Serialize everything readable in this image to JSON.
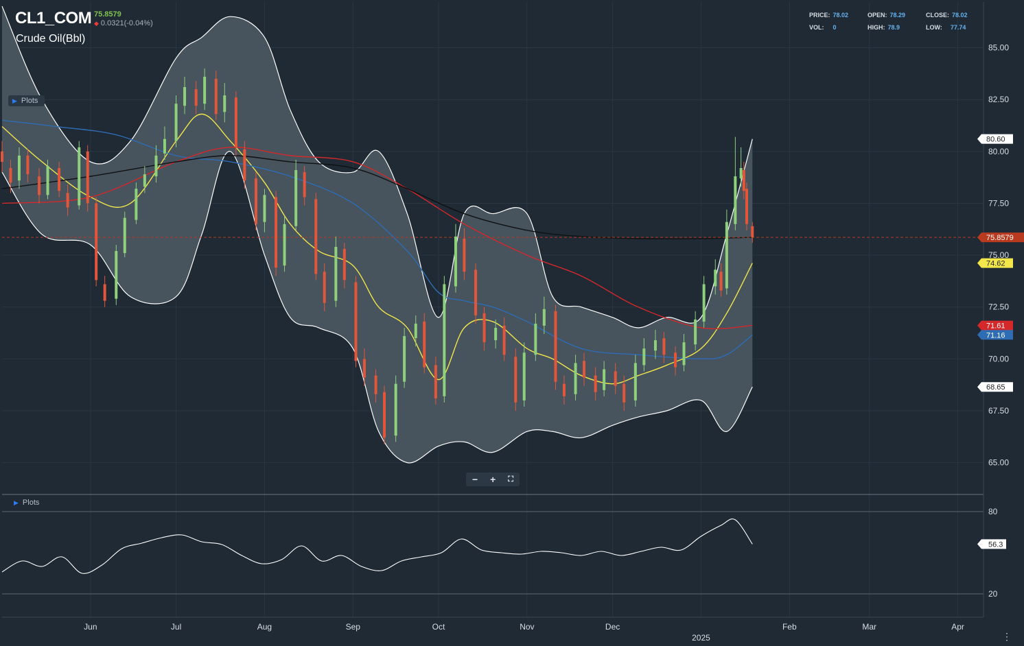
{
  "header": {
    "symbol": "CL1_COM",
    "last_price": "75.8579",
    "change": "0.0321(-0.04%)",
    "instrument": "Crude Oil(Bbl)"
  },
  "ohlc": {
    "price_label": "PRICE:",
    "price": "78.02",
    "open_label": "OPEN:",
    "open": "78.29",
    "close_label": "CLOSE:",
    "close": "78.02",
    "vol_label": "VOL:",
    "vol": "0",
    "high_label": "HIGH:",
    "high": "78.9",
    "low_label": "LOW:",
    "low": "77.74"
  },
  "plots_label": "Plots",
  "zoom": {
    "minus": "−",
    "plus": "+",
    "fit": "⛶"
  },
  "colors": {
    "background": "#1f2a35",
    "band_fill": "#4a5560",
    "up_candle": "#8fd07c",
    "down_candle": "#e2573b",
    "sma_fast": "#f2e64a",
    "sma_mid": "#2e6db4",
    "sma_slow_red": "#d4282a",
    "sma_long": "#111111",
    "current_price": "#b83a1f"
  },
  "chart_data": [
    {
      "type": "line",
      "title": "CL1_COM",
      "ylabel": "",
      "ylim": [
        63.5,
        87.2
      ],
      "y_ticks": [
        "65.00",
        "67.50",
        "70.00",
        "72.50",
        "75.00",
        "77.50",
        "80.00",
        "82.50",
        "85.00"
      ],
      "x_ticks": [
        "Jun",
        "Jul",
        "Aug",
        "Sep",
        "Oct",
        "Nov",
        "Dec",
        "2025",
        "Feb",
        "Mar",
        "Apr"
      ],
      "x_range": [
        "2024-05-01",
        "2025-04-10"
      ],
      "last_value": 75.8579,
      "series": [
        {
          "kind": "band_upper",
          "x": [
            "2024-05-01",
            "2024-05-15",
            "2024-06-01",
            "2024-06-15",
            "2024-07-01",
            "2024-07-10",
            "2024-07-20",
            "2024-08-01",
            "2024-08-10",
            "2024-08-20",
            "2024-09-01",
            "2024-09-10",
            "2024-09-20",
            "2024-10-01",
            "2024-10-10",
            "2024-10-20",
            "2024-11-01",
            "2024-11-10",
            "2024-11-20",
            "2024-12-01",
            "2024-12-10",
            "2024-12-20",
            "2025-01-01",
            "2025-01-10",
            "2025-01-19"
          ],
          "y": [
            87,
            82.5,
            79.5,
            80.5,
            84.5,
            85.5,
            86.5,
            85.5,
            82,
            79.5,
            79,
            80,
            77,
            72,
            77,
            77,
            77,
            73,
            72.5,
            72,
            71.5,
            72,
            72,
            76,
            80.6
          ]
        },
        {
          "kind": "band_lower",
          "x": [
            "2024-05-01",
            "2024-05-15",
            "2024-06-01",
            "2024-06-15",
            "2024-07-01",
            "2024-07-10",
            "2024-07-20",
            "2024-08-01",
            "2024-08-10",
            "2024-08-20",
            "2024-09-01",
            "2024-09-10",
            "2024-09-20",
            "2024-10-01",
            "2024-10-10",
            "2024-10-20",
            "2024-11-01",
            "2024-11-10",
            "2024-11-20",
            "2024-12-01",
            "2024-12-10",
            "2024-12-20",
            "2025-01-01",
            "2025-01-10",
            "2025-01-19"
          ],
          "y": [
            79,
            76,
            75.5,
            73,
            73,
            76,
            80,
            75,
            72,
            71.5,
            70.5,
            66.5,
            65,
            65.8,
            66,
            65.5,
            66.5,
            66.5,
            66.2,
            66.8,
            67.2,
            67.5,
            68,
            66.5,
            68.65
          ]
        },
        {
          "name": "",
          "kind": "sma_fast",
          "x": [
            "2024-05-01",
            "2024-05-15",
            "2024-06-01",
            "2024-06-15",
            "2024-07-01",
            "2024-07-10",
            "2024-07-20",
            "2024-08-01",
            "2024-08-10",
            "2024-08-20",
            "2024-09-01",
            "2024-09-10",
            "2024-09-20",
            "2024-10-01",
            "2024-10-10",
            "2024-10-20",
            "2024-11-01",
            "2024-11-10",
            "2024-11-20",
            "2024-12-01",
            "2024-12-10",
            "2024-12-20",
            "2025-01-01",
            "2025-01-10",
            "2025-01-19"
          ],
          "y": [
            81.2,
            79.5,
            77.8,
            77.5,
            80.5,
            81.8,
            80.5,
            78.5,
            76.5,
            75.2,
            74.5,
            72.5,
            71.5,
            69,
            71.5,
            71.8,
            70.5,
            70,
            69.2,
            68.8,
            69.2,
            69.7,
            70.5,
            72.2,
            74.62
          ]
        },
        {
          "name": "",
          "kind": "sma_mid",
          "x": [
            "2024-05-01",
            "2024-05-20",
            "2024-06-10",
            "2024-07-01",
            "2024-07-20",
            "2024-08-10",
            "2024-09-01",
            "2024-09-20",
            "2024-10-01",
            "2024-10-10",
            "2024-10-20",
            "2024-11-01",
            "2024-11-20",
            "2024-12-10",
            "2025-01-01",
            "2025-01-10",
            "2025-01-19"
          ],
          "y": [
            81.5,
            81.2,
            80.8,
            79.8,
            79.5,
            78.8,
            77.5,
            75.2,
            73.2,
            72.8,
            72.5,
            71.8,
            70.5,
            70.2,
            70,
            70.2,
            71.16
          ]
        },
        {
          "name": "",
          "kind": "sma_slow",
          "x": [
            "2024-05-01",
            "2024-06-01",
            "2024-07-01",
            "2024-07-20",
            "2024-08-10",
            "2024-09-01",
            "2024-09-20",
            "2024-10-10",
            "2024-11-01",
            "2024-11-20",
            "2024-12-10",
            "2025-01-01",
            "2025-01-19"
          ],
          "y": [
            77.5,
            77.8,
            79.5,
            80.2,
            79.8,
            79.5,
            78.2,
            76.5,
            75,
            74,
            72.5,
            71.5,
            71.61
          ]
        },
        {
          "name": "",
          "kind": "sma_long",
          "x": [
            "2024-05-01",
            "2024-06-01",
            "2024-07-01",
            "2024-07-20",
            "2024-08-10",
            "2024-09-01",
            "2024-09-20",
            "2024-10-10",
            "2024-11-01",
            "2024-11-20",
            "2024-12-10",
            "2025-01-01",
            "2025-01-19"
          ],
          "y": [
            78.2,
            78.8,
            79.5,
            79.8,
            79.5,
            79.2,
            78.2,
            77,
            76.2,
            75.9,
            75.8,
            75.8,
            75.86
          ]
        }
      ],
      "candles": [
        [
          "2024-05-01",
          80,
          79.5,
          80.5,
          79
        ],
        [
          "2024-05-04",
          79.2,
          78.5,
          79.6,
          78
        ],
        [
          "2024-05-07",
          78.6,
          79.8,
          80.2,
          78.2
        ],
        [
          "2024-05-10",
          79.8,
          78.9,
          80.1,
          78.5
        ],
        [
          "2024-05-14",
          78.8,
          77.9,
          79.2,
          77.5
        ],
        [
          "2024-05-17",
          77.9,
          79.3,
          79.6,
          77.7
        ],
        [
          "2024-05-21",
          79.2,
          78.1,
          79.5,
          77.8
        ],
        [
          "2024-05-24",
          78,
          77.3,
          78.4,
          76.9
        ],
        [
          "2024-05-28",
          77.4,
          80.2,
          80.5,
          77.2
        ],
        [
          "2024-05-31",
          80,
          77.5,
          80.3,
          77.1
        ],
        [
          "2024-06-03",
          77.5,
          73.8,
          77.8,
          73.5
        ],
        [
          "2024-06-06",
          73.6,
          72.8,
          74,
          72.5
        ],
        [
          "2024-06-10",
          72.9,
          75.2,
          75.5,
          72.6
        ],
        [
          "2024-06-13",
          75.1,
          76.8,
          77.1,
          74.9
        ],
        [
          "2024-06-17",
          76.7,
          78.2,
          78.5,
          76.5
        ],
        [
          "2024-06-20",
          78.3,
          78.9,
          79.3,
          78
        ],
        [
          "2024-06-24",
          78.8,
          79.8,
          80.3,
          78.5
        ],
        [
          "2024-06-27",
          79.9,
          80.6,
          81.2,
          79.6
        ],
        [
          "2024-07-01",
          80.5,
          82.3,
          82.7,
          80.2
        ],
        [
          "2024-07-04",
          82.2,
          83.1,
          83.6,
          81.8
        ],
        [
          "2024-07-08",
          83,
          82.2,
          83.4,
          81.8
        ],
        [
          "2024-07-11",
          82.3,
          83.6,
          84,
          82
        ],
        [
          "2024-07-15",
          83.5,
          81.8,
          83.9,
          81.5
        ],
        [
          "2024-07-18",
          81.9,
          82.7,
          83.3,
          81.4
        ],
        [
          "2024-07-22",
          82.6,
          80.2,
          82.9,
          79.8
        ],
        [
          "2024-07-25",
          80.1,
          78.6,
          80.5,
          78.2
        ],
        [
          "2024-07-29",
          78.7,
          76.5,
          79,
          76.2
        ],
        [
          "2024-08-01",
          76.6,
          77.9,
          78.2,
          76.1
        ],
        [
          "2024-08-05",
          77.8,
          74.4,
          78.1,
          74
        ],
        [
          "2024-08-08",
          74.5,
          76.5,
          76.9,
          74.2
        ],
        [
          "2024-08-12",
          76.4,
          79.1,
          79.6,
          76.2
        ],
        [
          "2024-08-15",
          79,
          77.8,
          79.3,
          77.4
        ],
        [
          "2024-08-19",
          77.7,
          74.1,
          78,
          73.8
        ],
        [
          "2024-08-22",
          74.2,
          72.7,
          74.6,
          72.3
        ],
        [
          "2024-08-26",
          72.8,
          75.4,
          75.9,
          72.5
        ],
        [
          "2024-08-29",
          75.3,
          73.8,
          75.6,
          73.4
        ],
        [
          "2024-09-02",
          73.7,
          69.9,
          74,
          69.6
        ],
        [
          "2024-09-05",
          70,
          69.1,
          70.5,
          68.7
        ],
        [
          "2024-09-09",
          69.2,
          68.3,
          69.5,
          67.9
        ],
        [
          "2024-09-12",
          68.4,
          66.2,
          68.7,
          65.9
        ],
        [
          "2024-09-16",
          66.3,
          68.8,
          69.2,
          66
        ],
        [
          "2024-09-19",
          68.9,
          71.1,
          71.5,
          68.6
        ],
        [
          "2024-09-23",
          71,
          71.7,
          72.1,
          70.6
        ],
        [
          "2024-09-26",
          71.8,
          69.6,
          72.2,
          69.3
        ],
        [
          "2024-09-30",
          69.7,
          68.1,
          70.1,
          67.8
        ],
        [
          "2024-10-03",
          68.2,
          73.6,
          74,
          67.9
        ],
        [
          "2024-10-07",
          73.5,
          75.9,
          76.5,
          73.2
        ],
        [
          "2024-10-10",
          75.8,
          74.2,
          76.3,
          73.8
        ],
        [
          "2024-10-14",
          74.3,
          72.1,
          74.6,
          71.7
        ],
        [
          "2024-10-17",
          72.2,
          70.8,
          72.5,
          70.4
        ],
        [
          "2024-10-21",
          70.9,
          71.5,
          71.9,
          70.5
        ],
        [
          "2024-10-24",
          71.6,
          70.2,
          72,
          69.9
        ],
        [
          "2024-10-28",
          70.1,
          67.9,
          70.5,
          67.5
        ],
        [
          "2024-10-31",
          68,
          70.3,
          70.8,
          67.7
        ],
        [
          "2024-11-04",
          70.2,
          71.7,
          72.2,
          69.9
        ],
        [
          "2024-11-07",
          71.6,
          72.4,
          73,
          71.2
        ],
        [
          "2024-11-11",
          72.3,
          68.9,
          72.6,
          68.5
        ],
        [
          "2024-11-14",
          68.8,
          68.2,
          69.2,
          67.8
        ],
        [
          "2024-11-18",
          68.3,
          69.8,
          70.2,
          68
        ],
        [
          "2024-11-21",
          69.9,
          69.1,
          70.3,
          68.7
        ],
        [
          "2024-11-25",
          69.2,
          68.4,
          69.6,
          68
        ],
        [
          "2024-11-28",
          68.5,
          69.5,
          69.9,
          68.2
        ],
        [
          "2024-12-02",
          69.4,
          68.7,
          69.8,
          68.3
        ],
        [
          "2024-12-05",
          68.8,
          67.9,
          69.2,
          67.5
        ],
        [
          "2024-12-09",
          68,
          69.8,
          70.2,
          67.7
        ],
        [
          "2024-12-12",
          69.7,
          70.5,
          71,
          69.4
        ],
        [
          "2024-12-16",
          70.4,
          70.9,
          71.4,
          70
        ],
        [
          "2024-12-19",
          71,
          70.2,
          71.3,
          69.8
        ],
        [
          "2024-12-23",
          70.3,
          69.6,
          70.6,
          69.2
        ],
        [
          "2024-12-26",
          69.7,
          70.8,
          71.2,
          69.4
        ],
        [
          "2024-12-30",
          70.7,
          71.9,
          72.3,
          70.4
        ],
        [
          "2025-01-02",
          71.8,
          73.6,
          74,
          71.5
        ],
        [
          "2025-01-06",
          73.5,
          74.3,
          74.8,
          73.1
        ],
        [
          "2025-01-08",
          74.2,
          73.3,
          74.6,
          73
        ],
        [
          "2025-01-10",
          73.4,
          76.6,
          77.2,
          73.1
        ],
        [
          "2025-01-13",
          76.5,
          78.8,
          80.7,
          76.2
        ],
        [
          "2025-01-15",
          78.7,
          79.2,
          80.2,
          78.3
        ],
        [
          "2025-01-16",
          79.1,
          78.1,
          79.5,
          77.7
        ],
        [
          "2025-01-17",
          78.2,
          76.5,
          78.5,
          76.2
        ],
        [
          "2025-01-19",
          76.4,
          75.86,
          76.6,
          75.6
        ]
      ]
    },
    {
      "type": "line",
      "title": "",
      "ylim": [
        3,
        92
      ],
      "y_ticks": [
        "20",
        "80"
      ],
      "last_value": 56.3,
      "x": [
        "2024-05-01",
        "2024-05-08",
        "2024-05-15",
        "2024-05-22",
        "2024-05-29",
        "2024-06-05",
        "2024-06-12",
        "2024-06-19",
        "2024-06-26",
        "2024-07-03",
        "2024-07-10",
        "2024-07-17",
        "2024-07-24",
        "2024-07-31",
        "2024-08-07",
        "2024-08-14",
        "2024-08-21",
        "2024-08-28",
        "2024-09-04",
        "2024-09-11",
        "2024-09-18",
        "2024-09-25",
        "2024-10-02",
        "2024-10-09",
        "2024-10-16",
        "2024-10-23",
        "2024-10-30",
        "2024-11-06",
        "2024-11-13",
        "2024-11-20",
        "2024-11-27",
        "2024-12-04",
        "2024-12-11",
        "2024-12-18",
        "2024-12-25",
        "2025-01-01",
        "2025-01-08",
        "2025-01-13",
        "2025-01-19"
      ],
      "y": [
        36,
        44,
        40,
        47,
        35,
        41,
        53,
        57,
        61,
        63,
        58,
        56,
        48,
        42,
        45,
        55,
        44,
        48,
        40,
        37,
        44,
        47,
        50,
        60,
        52,
        50,
        49,
        51,
        50,
        48,
        51,
        48,
        51,
        54,
        52,
        62,
        70,
        74,
        56.3
      ]
    }
  ]
}
